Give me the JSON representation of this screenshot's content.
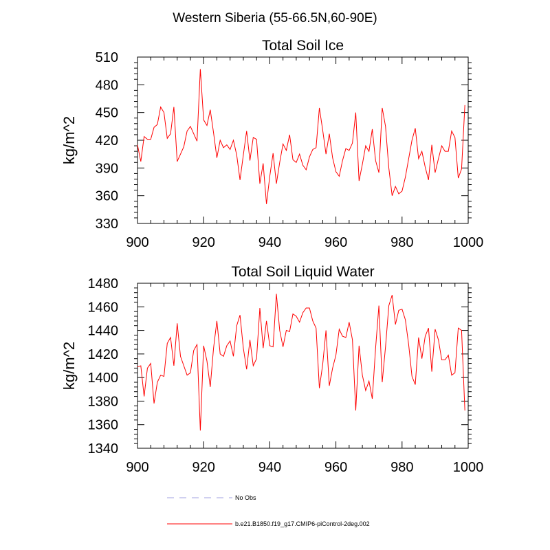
{
  "title": "Western Siberia (55-66.5N,60-90E)",
  "legend": [
    {
      "label": "No Obs",
      "color": "#a0a0e0",
      "dash": true
    },
    {
      "label": "b.e21.B1850.f19_g17.CMIP6-piControl-2deg.002",
      "color": "#ff0000",
      "dash": false
    }
  ],
  "chart_data": [
    {
      "type": "line",
      "title": "Total Soil Ice",
      "xlabel": "",
      "ylabel": "kg/m^2",
      "xlim": [
        900,
        1000
      ],
      "ylim": [
        330,
        510
      ],
      "xticks": [
        900,
        920,
        940,
        960,
        980,
        1000
      ],
      "yticks": [
        330,
        360,
        390,
        420,
        450,
        480,
        510
      ],
      "series": [
        {
          "color": "#ff0000",
          "x": [
            900,
            901,
            902,
            903,
            904,
            905,
            906,
            907,
            908,
            909,
            910,
            911,
            912,
            913,
            914,
            915,
            916,
            917,
            918,
            919,
            920,
            921,
            922,
            923,
            924,
            925,
            926,
            927,
            928,
            929,
            930,
            931,
            932,
            933,
            934,
            935,
            936,
            937,
            938,
            939,
            940,
            941,
            942,
            943,
            944,
            945,
            946,
            947,
            948,
            949,
            950,
            951,
            952,
            953,
            954,
            955,
            956,
            957,
            958,
            959,
            960,
            961,
            962,
            963,
            964,
            965,
            966,
            967,
            968,
            969,
            970,
            971,
            972,
            973,
            974,
            975,
            976,
            977,
            978,
            979,
            980,
            981,
            982,
            983,
            984,
            985,
            986,
            987,
            988,
            989,
            990,
            991,
            992,
            993,
            994,
            995,
            996,
            997,
            998,
            999
          ],
          "y": [
            415,
            397,
            424,
            421,
            421,
            434,
            437,
            456,
            450,
            422,
            427,
            456,
            397,
            405,
            413,
            430,
            435,
            427,
            419,
            497,
            442,
            436,
            453,
            428,
            401,
            420,
            412,
            415,
            410,
            420,
            404,
            377,
            404,
            430,
            398,
            423,
            421,
            373,
            395,
            351,
            381,
            406,
            373,
            396,
            416,
            409,
            426,
            399,
            396,
            405,
            393,
            388,
            402,
            410,
            412,
            455,
            431,
            405,
            427,
            401,
            386,
            381,
            398,
            411,
            409,
            417,
            450,
            376,
            394,
            414,
            408,
            432,
            398,
            385,
            455,
            435,
            390,
            360,
            370,
            362,
            365,
            380,
            400,
            420,
            433,
            400,
            408,
            391,
            377,
            415,
            385,
            400,
            414,
            408,
            408,
            430,
            423,
            379,
            389,
            458
          ]
        }
      ]
    },
    {
      "type": "line",
      "title": "Total Soil Liquid Water",
      "xlabel": "",
      "ylabel": "kg/m^2",
      "xlim": [
        900,
        1000
      ],
      "ylim": [
        1340,
        1480
      ],
      "xticks": [
        900,
        920,
        940,
        960,
        980,
        1000
      ],
      "yticks": [
        1340,
        1360,
        1380,
        1400,
        1420,
        1440,
        1460,
        1480
      ],
      "series": [
        {
          "color": "#ff0000",
          "x": [
            900,
            901,
            902,
            903,
            904,
            905,
            906,
            907,
            908,
            909,
            910,
            911,
            912,
            913,
            914,
            915,
            916,
            917,
            918,
            919,
            920,
            921,
            922,
            923,
            924,
            925,
            926,
            927,
            928,
            929,
            930,
            931,
            932,
            933,
            934,
            935,
            936,
            937,
            938,
            939,
            940,
            941,
            942,
            943,
            944,
            945,
            946,
            947,
            948,
            949,
            950,
            951,
            952,
            953,
            954,
            955,
            956,
            957,
            958,
            959,
            960,
            961,
            962,
            963,
            964,
            965,
            966,
            967,
            968,
            969,
            970,
            971,
            972,
            973,
            974,
            975,
            976,
            977,
            978,
            979,
            980,
            981,
            982,
            983,
            984,
            985,
            986,
            987,
            988,
            989,
            990,
            991,
            992,
            993,
            994,
            995,
            996,
            997,
            998,
            999
          ],
          "y": [
            1409,
            1410,
            1384,
            1408,
            1412,
            1378,
            1396,
            1402,
            1401,
            1429,
            1434,
            1410,
            1446,
            1418,
            1410,
            1402,
            1404,
            1423,
            1428,
            1355,
            1427,
            1414,
            1392,
            1425,
            1448,
            1420,
            1418,
            1427,
            1431,
            1418,
            1444,
            1453,
            1425,
            1407,
            1432,
            1410,
            1416,
            1459,
            1425,
            1448,
            1427,
            1426,
            1471,
            1440,
            1426,
            1440,
            1439,
            1454,
            1452,
            1447,
            1455,
            1459,
            1459,
            1448,
            1442,
            1391,
            1411,
            1440,
            1393,
            1408,
            1419,
            1441,
            1435,
            1434,
            1447,
            1432,
            1372,
            1427,
            1402,
            1389,
            1397,
            1382,
            1425,
            1461,
            1396,
            1426,
            1461,
            1470,
            1445,
            1457,
            1458,
            1449,
            1428,
            1401,
            1394,
            1434,
            1416,
            1435,
            1442,
            1405,
            1441,
            1432,
            1415,
            1415,
            1419,
            1402,
            1404,
            1442,
            1440,
            1372
          ]
        }
      ]
    }
  ]
}
